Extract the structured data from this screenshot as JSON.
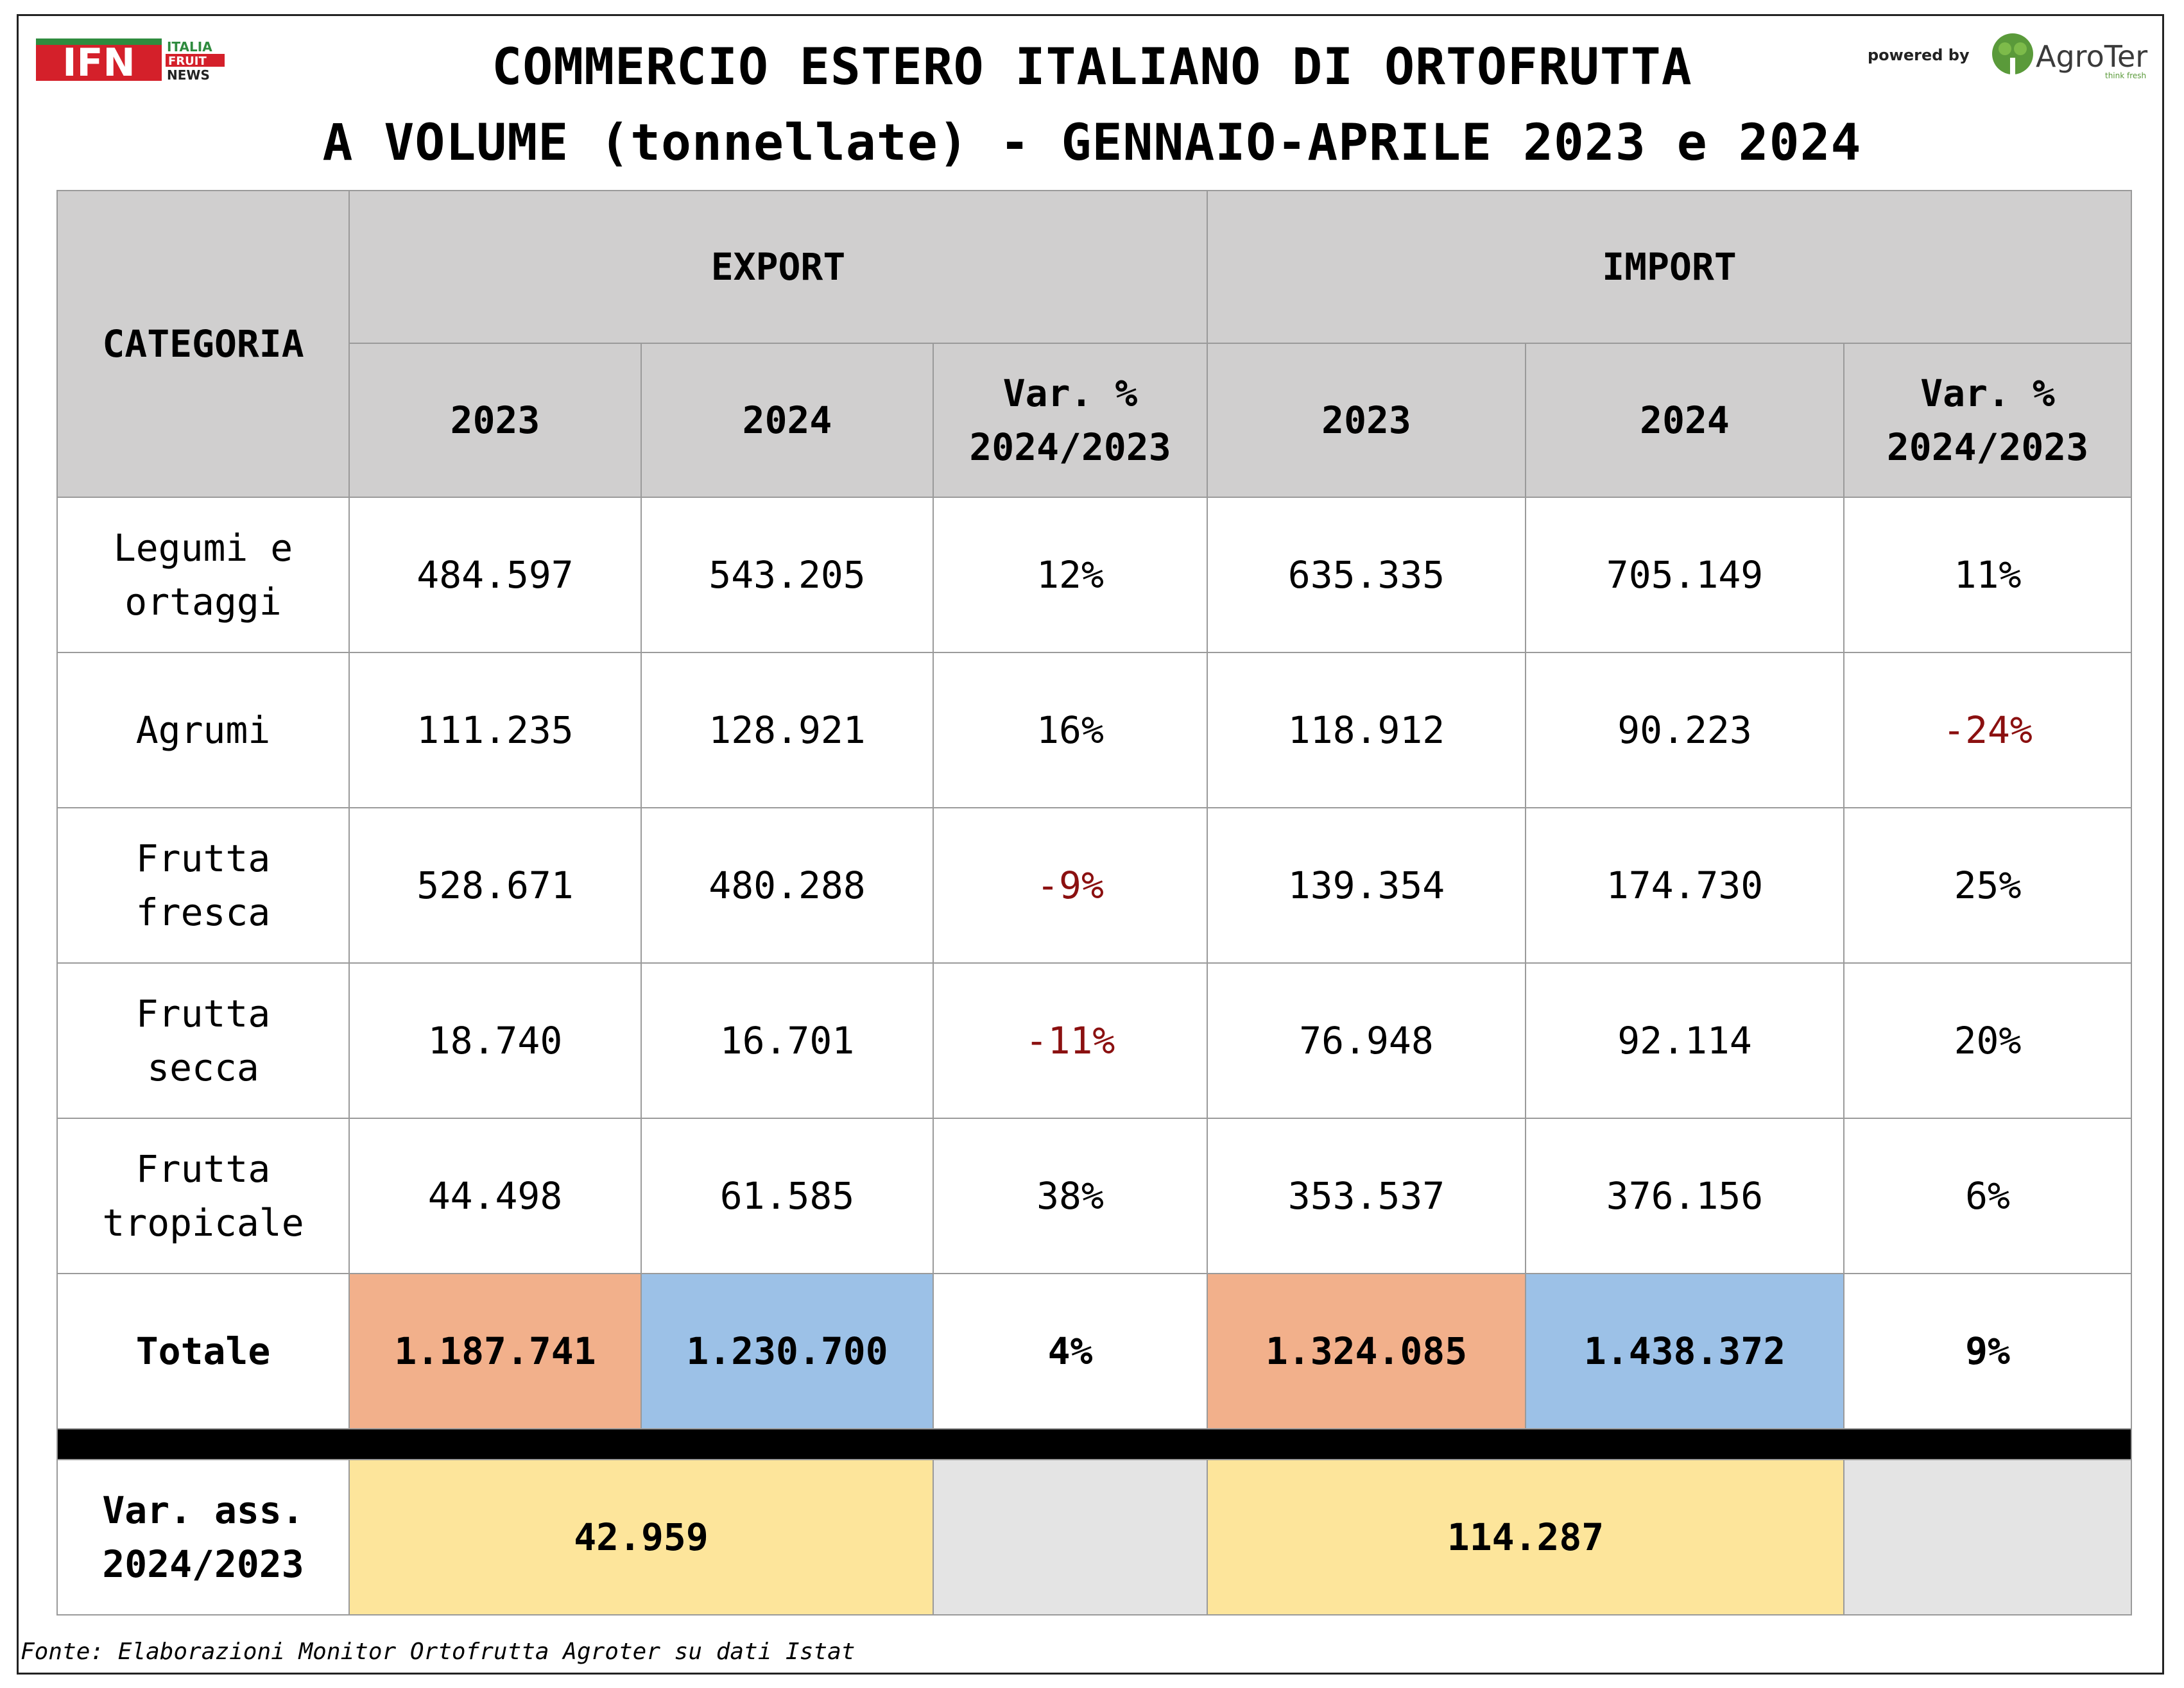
{
  "title_line1": "COMMERCIO ESTERO ITALIANO DI ORTOFRUTTA",
  "title_line2": "A VOLUME (tonnellate) - GENNAIO-APRILE 2023 e 2024",
  "logo_left": {
    "main": "IFN",
    "line1": "ITALIA",
    "line2": "FRUIT",
    "line3": "NEWS"
  },
  "logo_right": {
    "powered": "powered by",
    "brand": "AgroTer",
    "tagline": "think fresh"
  },
  "table": {
    "header_categoria": "CATEGORIA",
    "header_export": "EXPORT",
    "header_import": "IMPORT",
    "sub_2023": "2023",
    "sub_2024": "2024",
    "sub_var_l1": "Var. %",
    "sub_var_l2": "2024/2023",
    "rows": [
      {
        "cat_l1": "Legumi e",
        "cat_l2": "ortaggi",
        "exp23": "484.597",
        "exp24": "543.205",
        "expvar": "12%",
        "imp23": "635.335",
        "imp24": "705.149",
        "impvar": "11%"
      },
      {
        "cat_l1": "Agrumi",
        "cat_l2": "",
        "exp23": "111.235",
        "exp24": "128.921",
        "expvar": "16%",
        "imp23": "118.912",
        "imp24": "90.223",
        "impvar": "-24%"
      },
      {
        "cat_l1": "Frutta",
        "cat_l2": "fresca",
        "exp23": "528.671",
        "exp24": "480.288",
        "expvar": "-9%",
        "imp23": "139.354",
        "imp24": "174.730",
        "impvar": "25%"
      },
      {
        "cat_l1": "Frutta",
        "cat_l2": "secca",
        "exp23": "18.740",
        "exp24": "16.701",
        "expvar": "-11%",
        "imp23": "76.948",
        "imp24": "92.114",
        "impvar": "20%"
      },
      {
        "cat_l1": "Frutta",
        "cat_l2": "tropicale",
        "exp23": "44.498",
        "exp24": "61.585",
        "expvar": "38%",
        "imp23": "353.537",
        "imp24": "376.156",
        "impvar": "6%"
      }
    ],
    "total": {
      "label": "Totale",
      "exp23": "1.187.741",
      "exp24": "1.230.700",
      "expvar": "4%",
      "imp23": "1.324.085",
      "imp24": "1.438.372",
      "impvar": "9%"
    },
    "var_ass": {
      "label_l1": "Var. ass.",
      "label_l2": "2024/2023",
      "export": "42.959",
      "import": "114.287"
    }
  },
  "colors": {
    "header_bg": "#d0cfcf",
    "total_2023": "#f2b08b",
    "total_2024": "#9cc1e7",
    "var_ass": "#fde59b",
    "negative": "#8b1010",
    "logo_red": "#d4202a",
    "logo_green": "#2e8b3e"
  },
  "source": "Fonte: Elaborazioni Monitor Ortofrutta Agroter su dati Istat"
}
